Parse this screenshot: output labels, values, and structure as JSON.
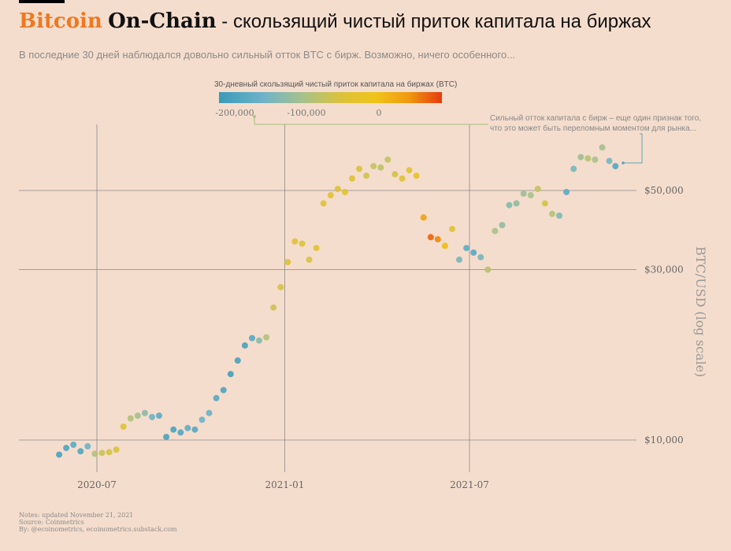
{
  "header": {
    "title_brand": "Bitcoin",
    "title_brand2": "On-Chain",
    "title_rest": " - скользящий чистый приток капитала на биржах",
    "subtitle": "В последние 30 дней наблюдался довольно сильный отток BTC с бирж. Возможно, ничего особенного..."
  },
  "legend": {
    "title": "30-дневный скользящий чистый приток капитала на биржах (BTC)",
    "ticks": [
      "-200,000",
      "-100,000",
      "0"
    ]
  },
  "annotation": {
    "line1": "Сильный отток капитала с бирж – еще один признак того,",
    "line2": "что это может быть переломным моментом для рынка..."
  },
  "notes": {
    "line1": "Notes: updated November 21, 2021",
    "line2": "Source: Coinmetrics",
    "line3": "By: @ecoinometrics, ecoinometrics.substack.com"
  },
  "colors": {
    "background": "#f5ddcd",
    "brand": "#f0781e",
    "grid": "#8a8a8a"
  },
  "chart_data": {
    "type": "scatter",
    "x_axis": {
      "ticks": [
        "2020-07",
        "2021-01",
        "2021-07"
      ],
      "range": [
        "2020-05-20",
        "2021-11-30"
      ]
    },
    "y_axis": {
      "label": "BTC/USD (log scale)",
      "scale": "log",
      "ticks": [
        10000,
        30000,
        50000
      ],
      "tick_labels": [
        "$10,000",
        "$30,000",
        "$50,000"
      ],
      "range": [
        8000,
        75000
      ]
    },
    "color_scale": {
      "variable": "30-day rolling net exchange flow (BTC)",
      "range": [
        -220000,
        85000
      ]
    },
    "grid": "on",
    "points": [
      [
        "2020-05-25",
        9100,
        -200000
      ],
      [
        "2020-06-01",
        9500,
        -195000
      ],
      [
        "2020-06-08",
        9700,
        -180000
      ],
      [
        "2020-06-15",
        9300,
        -190000
      ],
      [
        "2020-06-22",
        9600,
        -160000
      ],
      [
        "2020-06-29",
        9150,
        -100000
      ],
      [
        "2020-07-06",
        9200,
        -80000
      ],
      [
        "2020-07-13",
        9250,
        -70000
      ],
      [
        "2020-07-20",
        9400,
        -65000
      ],
      [
        "2020-07-27",
        10900,
        -60000
      ],
      [
        "2020-08-03",
        11500,
        -100000
      ],
      [
        "2020-08-10",
        11700,
        -115000
      ],
      [
        "2020-08-17",
        11900,
        -135000
      ],
      [
        "2020-08-24",
        11600,
        -160000
      ],
      [
        "2020-08-31",
        11700,
        -180000
      ],
      [
        "2020-09-07",
        10200,
        -200000
      ],
      [
        "2020-09-14",
        10700,
        -200000
      ],
      [
        "2020-09-21",
        10500,
        -190000
      ],
      [
        "2020-09-28",
        10800,
        -175000
      ],
      [
        "2020-10-05",
        10700,
        -185000
      ],
      [
        "2020-10-12",
        11400,
        -160000
      ],
      [
        "2020-10-19",
        11900,
        -165000
      ],
      [
        "2020-10-26",
        13100,
        -185000
      ],
      [
        "2020-11-02",
        13800,
        -195000
      ],
      [
        "2020-11-09",
        15300,
        -205000
      ],
      [
        "2020-11-16",
        16700,
        -200000
      ],
      [
        "2020-11-23",
        18400,
        -200000
      ],
      [
        "2020-11-30",
        19300,
        -185000
      ],
      [
        "2020-12-07",
        19000,
        -135000
      ],
      [
        "2020-12-14",
        19400,
        -100000
      ],
      [
        "2020-12-21",
        23500,
        -75000
      ],
      [
        "2020-12-28",
        26800,
        -65000
      ],
      [
        "2021-01-04",
        31500,
        -60000
      ],
      [
        "2021-01-11",
        36000,
        -55000
      ],
      [
        "2021-01-18",
        35500,
        -60000
      ],
      [
        "2021-01-25",
        32000,
        -65000
      ],
      [
        "2021-02-01",
        34500,
        -55000
      ],
      [
        "2021-02-08",
        46000,
        -60000
      ],
      [
        "2021-02-15",
        48500,
        -55000
      ],
      [
        "2021-02-22",
        50500,
        -60000
      ],
      [
        "2021-03-01",
        49500,
        -55000
      ],
      [
        "2021-03-08",
        54000,
        -60000
      ],
      [
        "2021-03-15",
        57500,
        -65000
      ],
      [
        "2021-03-22",
        55000,
        -75000
      ],
      [
        "2021-03-29",
        58500,
        -85000
      ],
      [
        "2021-04-05",
        58000,
        -90000
      ],
      [
        "2021-04-12",
        61000,
        -85000
      ],
      [
        "2021-04-19",
        55500,
        -70000
      ],
      [
        "2021-04-26",
        54000,
        -60000
      ],
      [
        "2021-05-03",
        57000,
        -55000
      ],
      [
        "2021-05-10",
        55000,
        -45000
      ],
      [
        "2021-05-17",
        42000,
        20000
      ],
      [
        "2021-05-24",
        37000,
        60000
      ],
      [
        "2021-05-31",
        36500,
        40000
      ],
      [
        "2021-06-07",
        35000,
        -10000
      ],
      [
        "2021-06-14",
        39000,
        -60000
      ],
      [
        "2021-06-21",
        32000,
        -150000
      ],
      [
        "2021-06-28",
        34500,
        -175000
      ],
      [
        "2021-07-05",
        33500,
        -185000
      ],
      [
        "2021-07-12",
        32500,
        -150000
      ],
      [
        "2021-07-19",
        30000,
        -95000
      ],
      [
        "2021-07-26",
        38500,
        -110000
      ],
      [
        "2021-08-02",
        40000,
        -130000
      ],
      [
        "2021-08-09",
        45500,
        -140000
      ],
      [
        "2021-08-16",
        46000,
        -130000
      ],
      [
        "2021-08-23",
        49000,
        -120000
      ],
      [
        "2021-08-30",
        48500,
        -110000
      ],
      [
        "2021-09-06",
        50500,
        -85000
      ],
      [
        "2021-09-13",
        46000,
        -70000
      ],
      [
        "2021-09-20",
        43000,
        -100000
      ],
      [
        "2021-09-27",
        42500,
        -145000
      ],
      [
        "2021-10-04",
        49500,
        -180000
      ],
      [
        "2021-10-11",
        57500,
        -150000
      ],
      [
        "2021-10-18",
        62000,
        -120000
      ],
      [
        "2021-10-25",
        61500,
        -95000
      ],
      [
        "2021-11-01",
        61000,
        -110000
      ],
      [
        "2021-11-08",
        66000,
        -115000
      ],
      [
        "2021-11-15",
        60500,
        -150000
      ],
      [
        "2021-11-21",
        58500,
        -190000
      ]
    ]
  }
}
